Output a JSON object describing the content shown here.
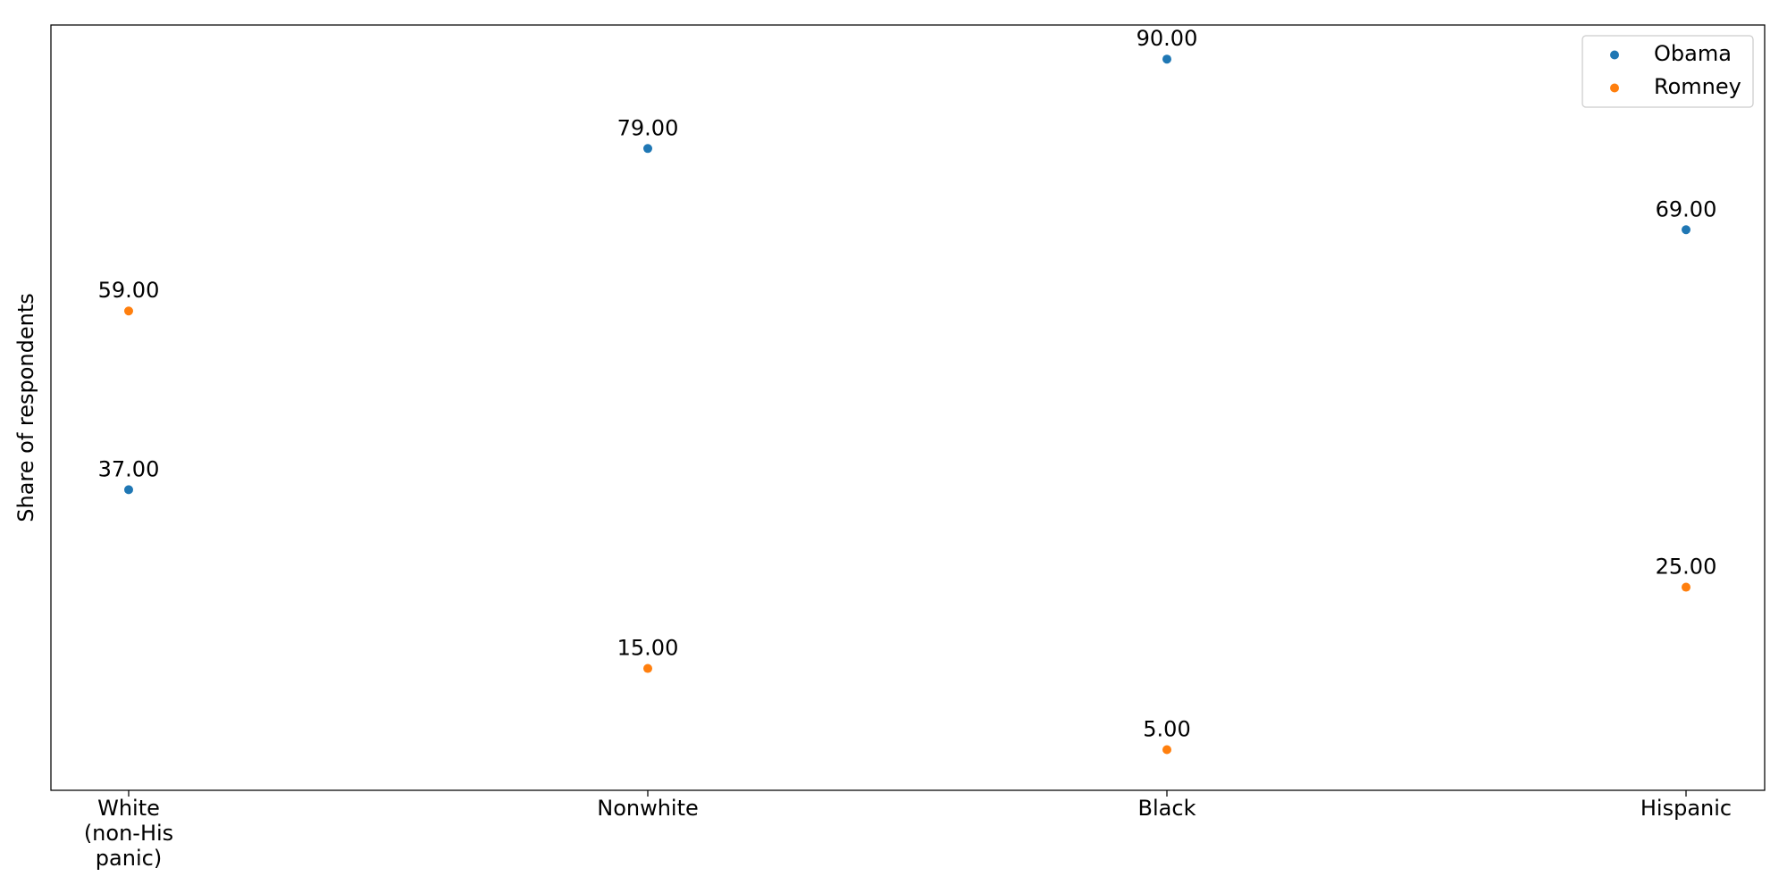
{
  "chart_data": {
    "type": "scatter",
    "title": "",
    "xlabel": "",
    "ylabel": "Share of respondents",
    "ylim": [
      0.0,
      94.2
    ],
    "grid": false,
    "legend_position": "top-right",
    "categories": [
      "White\n(non-His\npanic)",
      "Nonwhite",
      "Black",
      "Hispanic"
    ],
    "series": [
      {
        "name": "Obama",
        "color": "#1f77b4",
        "values": [
          37,
          79,
          90,
          69
        ],
        "labels": [
          "37.00",
          "79.00",
          "90.00",
          "69.00"
        ]
      },
      {
        "name": "Romney",
        "color": "#ff7f0e",
        "values": [
          59,
          15,
          5,
          25
        ],
        "labels": [
          "59.00",
          "15.00",
          "5.00",
          "25.00"
        ]
      }
    ]
  }
}
